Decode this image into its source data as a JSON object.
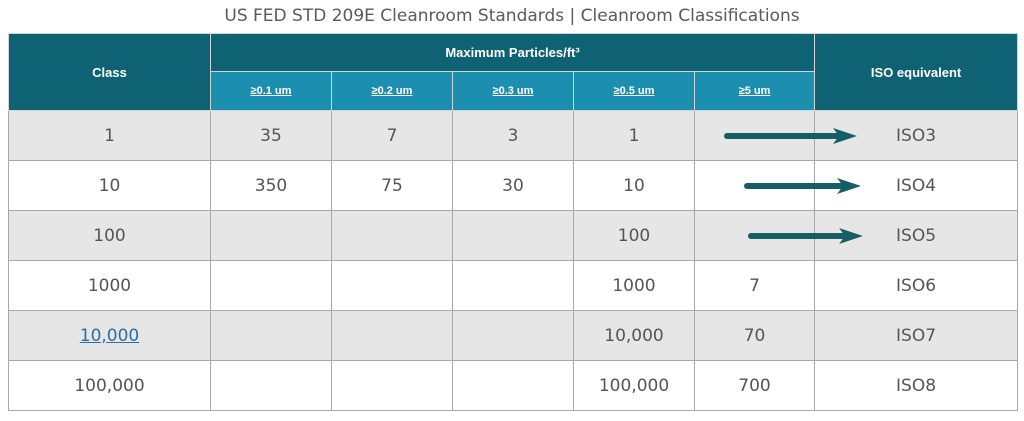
{
  "title": "US FED STD 209E Cleanroom Standards | Cleanroom Classifications",
  "header": {
    "class_label": "Class",
    "max_label": "Maximum  Particles/ft³",
    "iso_label": "ISO equivalent",
    "sizes": [
      "≥0.1 um",
      "≥0.2 um",
      "≥0.3 um",
      "≥0.5 um",
      "≥5 um"
    ]
  },
  "rows": [
    {
      "class": "1",
      "p01": "35",
      "p02": "7",
      "p03": "3",
      "p05": "1",
      "p5": "",
      "iso": "ISO3",
      "arrow": true
    },
    {
      "class": "10",
      "p01": "350",
      "p02": "75",
      "p03": "30",
      "p05": "10",
      "p5": "",
      "iso": "ISO4",
      "arrow": true
    },
    {
      "class": "100",
      "p01": "",
      "p02": "",
      "p03": "",
      "p05": "100",
      "p5": "",
      "iso": "ISO5",
      "arrow": true
    },
    {
      "class": "1000",
      "p01": "",
      "p02": "",
      "p03": "",
      "p05": "1000",
      "p5": "7",
      "iso": "ISO6",
      "arrow": false
    },
    {
      "class": "10,000",
      "p01": "",
      "p02": "",
      "p03": "",
      "p05": "10,000",
      "p5": "70",
      "iso": "ISO7",
      "arrow": false,
      "class_is_link": true
    },
    {
      "class": "100,000",
      "p01": "",
      "p02": "",
      "p03": "",
      "p05": "100,000",
      "p5": "700",
      "iso": "ISO8",
      "arrow": false
    }
  ],
  "colors": {
    "header_dark": "#0f6274",
    "header_sub": "#1c8fb0",
    "row_shade": "#e6e6e6",
    "arrow": "#155e63",
    "link": "#2b6ea6"
  },
  "icons": {
    "arrow": "right-arrow-icon"
  }
}
